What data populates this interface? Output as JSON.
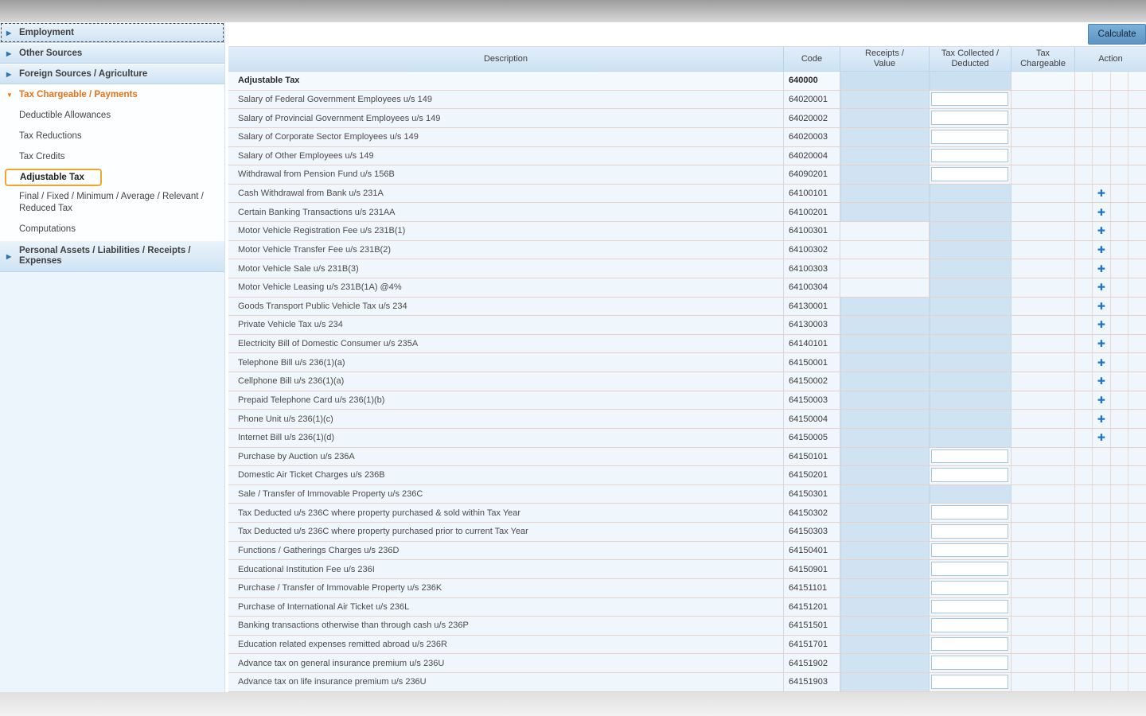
{
  "colors": {
    "accent_orange": "#e8731a",
    "highlight_box_border": "#f0a62e",
    "calculate_button_blue": "#6aa2cf",
    "plus_icon_blue": "#2274c9",
    "shaded_cell_blue": "#cfe3f3",
    "header_blue": "#d7e8f6",
    "row_background": "#eff6fc"
  },
  "sidebar": {
    "items": [
      {
        "label": "Employment",
        "slug": "employment",
        "type": "parent",
        "focused": true
      },
      {
        "label": "Other Sources",
        "slug": "other-sources",
        "type": "parent"
      },
      {
        "label": "Foreign Sources / Agriculture",
        "slug": "foreign-sources-agriculture",
        "type": "parent"
      },
      {
        "label": "Tax Chargeable / Payments",
        "slug": "tax-chargeable-payments",
        "type": "expanded"
      },
      {
        "label": "Deductible Allowances",
        "slug": "deductible-allowances",
        "type": "child"
      },
      {
        "label": "Tax Reductions",
        "slug": "tax-reductions",
        "type": "child"
      },
      {
        "label": "Tax Credits",
        "slug": "tax-credits",
        "type": "child"
      },
      {
        "label": "Adjustable Tax",
        "slug": "adjustable-tax",
        "type": "child-active"
      },
      {
        "label": "Final / Fixed / Minimum / Average / Relevant / Reduced Tax",
        "slug": "final-fixed-minimum-average-relevant-reduced-tax",
        "type": "child-two-line"
      },
      {
        "label": "Computations",
        "slug": "computations",
        "type": "child-computations"
      },
      {
        "label": "Personal Assets / Liabilities / Receipts / Expenses",
        "slug": "personal-assets-liabilities-receipts-expenses",
        "type": "parent-two-line"
      }
    ]
  },
  "toolbar": {
    "calculate_label": "Calculate"
  },
  "table": {
    "columns": [
      "Description",
      "Code",
      "Receipts /\nValue",
      "Tax Collected /\nDeducted",
      "Tax\nChargeable",
      "Action"
    ],
    "rows": [
      {
        "description": "Adjustable Tax",
        "code": "640000",
        "receipts": "shaded",
        "tax": "shaded",
        "action": "none",
        "bold": true
      },
      {
        "description": "Salary of Federal Government Employees u/s 149",
        "code": "64020001",
        "receipts": "shaded",
        "tax": "input",
        "action": "none"
      },
      {
        "description": "Salary of Provincial Government Employees u/s 149",
        "code": "64020002",
        "receipts": "shaded",
        "tax": "input",
        "action": "none"
      },
      {
        "description": "Salary of Corporate Sector Employees u/s 149",
        "code": "64020003",
        "receipts": "shaded",
        "tax": "input",
        "action": "none"
      },
      {
        "description": "Salary of Other Employees u/s 149",
        "code": "64020004",
        "receipts": "shaded",
        "tax": "input",
        "action": "none"
      },
      {
        "description": "Withdrawal from Pension Fund u/s 156B",
        "code": "64090201",
        "receipts": "shaded",
        "tax": "input",
        "action": "none"
      },
      {
        "description": "Cash Withdrawal from Bank u/s 231A",
        "code": "64100101",
        "receipts": "shaded",
        "tax": "shaded",
        "action": "plus"
      },
      {
        "description": "Certain Banking Transactions u/s 231AA",
        "code": "64100201",
        "receipts": "shaded",
        "tax": "shaded",
        "action": "plus"
      },
      {
        "description": "Motor Vehicle Registration Fee u/s 231B(1)",
        "code": "64100301",
        "receipts": "light",
        "tax": "shaded",
        "action": "plus"
      },
      {
        "description": "Motor Vehicle Transfer Fee u/s 231B(2)",
        "code": "64100302",
        "receipts": "light",
        "tax": "shaded",
        "action": "plus"
      },
      {
        "description": "Motor Vehicle Sale u/s 231B(3)",
        "code": "64100303",
        "receipts": "light",
        "tax": "shaded",
        "action": "plus"
      },
      {
        "description": "Motor Vehicle Leasing u/s 231B(1A) @4%",
        "code": "64100304",
        "receipts": "light",
        "tax": "shaded",
        "action": "plus"
      },
      {
        "description": "Goods Transport Public Vehicle Tax u/s 234",
        "code": "64130001",
        "receipts": "shaded",
        "tax": "shaded",
        "action": "plus"
      },
      {
        "description": "Private Vehicle Tax u/s 234",
        "code": "64130003",
        "receipts": "shaded",
        "tax": "shaded",
        "action": "plus"
      },
      {
        "description": "Electricity Bill of Domestic Consumer u/s 235A",
        "code": "64140101",
        "receipts": "shaded",
        "tax": "shaded",
        "action": "plus"
      },
      {
        "description": "Telephone Bill u/s 236(1)(a)",
        "code": "64150001",
        "receipts": "shaded",
        "tax": "shaded",
        "action": "plus"
      },
      {
        "description": "Cellphone Bill u/s 236(1)(a)",
        "code": "64150002",
        "receipts": "shaded",
        "tax": "shaded",
        "action": "plus"
      },
      {
        "description": "Prepaid Telephone Card u/s 236(1)(b)",
        "code": "64150003",
        "receipts": "shaded",
        "tax": "shaded",
        "action": "plus"
      },
      {
        "description": "Phone Unit u/s 236(1)(c)",
        "code": "64150004",
        "receipts": "shaded",
        "tax": "shaded",
        "action": "plus"
      },
      {
        "description": "Internet Bill u/s 236(1)(d)",
        "code": "64150005",
        "receipts": "shaded",
        "tax": "shaded",
        "action": "plus"
      },
      {
        "description": "Purchase by Auction u/s 236A",
        "code": "64150101",
        "receipts": "shaded",
        "tax": "input",
        "action": "none"
      },
      {
        "description": "Domestic Air Ticket Charges u/s 236B",
        "code": "64150201",
        "receipts": "shaded",
        "tax": "input",
        "action": "none"
      },
      {
        "description": "Sale / Transfer of Immovable Property u/s 236C",
        "code": "64150301",
        "receipts": "shaded",
        "tax": "shaded",
        "action": "none"
      },
      {
        "description": "Tax Deducted u/s 236C where property purchased & sold within Tax Year",
        "code": "64150302",
        "receipts": "shaded",
        "tax": "input",
        "action": "none"
      },
      {
        "description": "Tax Deducted u/s 236C where property purchased prior to current Tax Year",
        "code": "64150303",
        "receipts": "shaded",
        "tax": "input",
        "action": "none"
      },
      {
        "description": "Functions / Gatherings Charges u/s 236D",
        "code": "64150401",
        "receipts": "shaded",
        "tax": "input",
        "action": "none"
      },
      {
        "description": "Educational Institution Fee u/s 236I",
        "code": "64150901",
        "receipts": "shaded",
        "tax": "input",
        "action": "none"
      },
      {
        "description": "Purchase / Transfer of Immovable Property u/s 236K",
        "code": "64151101",
        "receipts": "shaded",
        "tax": "input",
        "action": "none"
      },
      {
        "description": "Purchase of International Air Ticket u/s 236L",
        "code": "64151201",
        "receipts": "shaded",
        "tax": "input",
        "action": "none"
      },
      {
        "description": "Banking transactions otherwise than through cash u/s 236P",
        "code": "64151501",
        "receipts": "shaded",
        "tax": "input",
        "action": "none"
      },
      {
        "description": "Education related expenses remitted abroad u/s 236R",
        "code": "64151701",
        "receipts": "shaded",
        "tax": "input",
        "action": "none"
      },
      {
        "description": "Advance tax on general insurance premium u/s 236U",
        "code": "64151902",
        "receipts": "shaded",
        "tax": "input",
        "action": "none"
      },
      {
        "description": "Advance tax on life insurance premium u/s 236U",
        "code": "64151903",
        "receipts": "shaded",
        "tax": "input",
        "action": "none"
      }
    ]
  }
}
